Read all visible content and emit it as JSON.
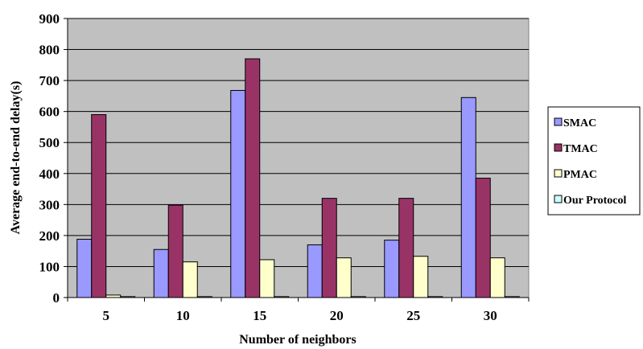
{
  "chart_data": {
    "type": "bar",
    "title": "",
    "xlabel": "Number of neighbors",
    "ylabel": "Average end-to-end delay(s)",
    "categories": [
      "5",
      "10",
      "15",
      "20",
      "25",
      "30"
    ],
    "ylim": [
      0,
      900
    ],
    "yticks": [
      0,
      100,
      200,
      300,
      400,
      500,
      600,
      700,
      800,
      900
    ],
    "grid": true,
    "legend_position": "right",
    "plot_background": "#c0c0c0",
    "series": [
      {
        "name": "SMAC",
        "color": "#9999ff",
        "values": [
          188,
          155,
          668,
          170,
          185,
          645
        ]
      },
      {
        "name": "TMAC",
        "color": "#993366",
        "values": [
          590,
          298,
          770,
          320,
          320,
          385
        ]
      },
      {
        "name": "PMAC",
        "color": "#ffffcc",
        "values": [
          8,
          115,
          122,
          128,
          133,
          128
        ]
      },
      {
        "name": "Our Protocol",
        "color": "#ccffff",
        "values": [
          3,
          3,
          3,
          3,
          3,
          3
        ]
      }
    ]
  }
}
